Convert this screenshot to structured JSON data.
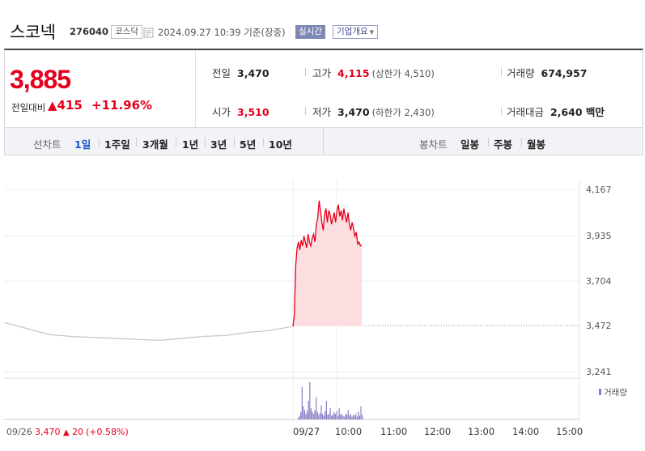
{
  "header": {
    "stock_name": "스코넥",
    "stock_code": "276040",
    "market": "코스닥",
    "refresh_icon": "refresh-icon",
    "datetime": "2024.09.27 10:39  기준(장중)",
    "realtime_label": "실시간",
    "overview_label": "기업개요"
  },
  "quote": {
    "price": "3,885",
    "change_label": "전일대비",
    "change_symbol": "▲",
    "change_abs": "415",
    "change_pct": "+11.96%",
    "prev_close_label": "전일",
    "prev_close": "3,470",
    "high_label": "고가",
    "high": "4,115",
    "upper_limit": "(상한가 4,510)",
    "volume_label": "거래량",
    "volume": "674,957",
    "open_label": "시가",
    "open": "3,510",
    "low_label": "저가",
    "low": "3,470",
    "lower_limit": "(하한가 2,430)",
    "amount_label": "거래대금",
    "amount": "2,640 백만"
  },
  "tabs": {
    "line_label": "선차트",
    "line_periods": [
      "1일",
      "1주일",
      "3개월",
      "1년",
      "3년",
      "5년",
      "10년"
    ],
    "active": "1일",
    "candle_label": "봉차트",
    "candle_periods": [
      "일봉",
      "주봉",
      "월봉"
    ]
  },
  "chart_data": {
    "type": "line",
    "y_ticks": [
      "4,167",
      "3,935",
      "3,704",
      "3,472",
      "3,241"
    ],
    "ylim": [
      3241,
      4167
    ],
    "prev_close_line": 3472,
    "x_tick_labels": [
      "09/26",
      "09/27",
      "10:00",
      "11:00",
      "12:00",
      "13:00",
      "14:00",
      "15:00"
    ],
    "prev_day_caption": {
      "date": "09/26",
      "price": "3,470",
      "symbol": "▲",
      "change": "20",
      "pct": "(+0.58%)"
    },
    "volume_legend": "거래량",
    "colors": {
      "up": "#e5001d",
      "fill": "#fcdde0",
      "prev_day": "#c8c8c8",
      "volume": "#8a7fc4"
    },
    "series": [
      {
        "x": [
          "09/26 09:00",
          "09/26 09:30",
          "09/26 10:00",
          "09/26 10:30",
          "09/26 11:00",
          "09/26 11:30",
          "09/26 12:00",
          "09/26 12:30",
          "09/26 13:00",
          "09/26 13:30",
          "09/26 14:00",
          "09/26 14:30",
          "09/26 15:00",
          "09/26 15:30"
        ],
        "values": [
          3490,
          3460,
          3430,
          3420,
          3415,
          3410,
          3405,
          3400,
          3410,
          3420,
          3425,
          3440,
          3450,
          3470
        ]
      },
      {
        "x": [
          "09:00",
          "09:02",
          "09:04",
          "09:06",
          "09:08",
          "09:10",
          "09:12",
          "09:14",
          "09:16",
          "09:18",
          "09:20",
          "09:22",
          "09:24",
          "09:26",
          "09:28",
          "09:30",
          "09:32",
          "09:34",
          "09:36",
          "09:38",
          "09:40",
          "09:42",
          "09:44",
          "09:46",
          "09:48",
          "09:50",
          "09:52",
          "09:54",
          "09:56",
          "09:58",
          "10:00",
          "10:02",
          "10:04",
          "10:06",
          "10:08",
          "10:10",
          "10:12",
          "10:14",
          "10:16",
          "10:18",
          "10:20",
          "10:22",
          "10:24",
          "10:26",
          "10:28",
          "10:30",
          "10:32",
          "10:34",
          "10:36",
          "10:38",
          "10:39"
        ],
        "values": [
          3470,
          3530,
          3780,
          3870,
          3900,
          3860,
          3910,
          3880,
          3930,
          3900,
          3870,
          3940,
          3900,
          3880,
          3920,
          3940,
          3900,
          3990,
          4020,
          4110,
          4060,
          4000,
          3960,
          4040,
          4070,
          4000,
          4060,
          4040,
          3990,
          4020,
          4050,
          4000,
          4060,
          4090,
          4030,
          4060,
          4010,
          4070,
          4030,
          4000,
          4050,
          3990,
          3960,
          4000,
          3970,
          3930,
          3950,
          3890,
          3900,
          3880,
          3885
        ]
      }
    ],
    "volume_values": [
      2,
      4,
      8,
      35,
      14,
      10,
      6,
      9,
      20,
      40,
      12,
      8,
      6,
      10,
      24,
      8,
      5,
      7,
      15,
      6,
      4,
      9,
      20,
      5,
      6,
      12,
      4,
      5,
      8,
      6,
      9,
      4,
      12,
      5,
      6,
      4,
      3,
      6,
      5,
      10,
      4,
      6,
      3,
      5,
      4,
      6,
      3,
      8,
      4,
      14,
      5
    ]
  }
}
